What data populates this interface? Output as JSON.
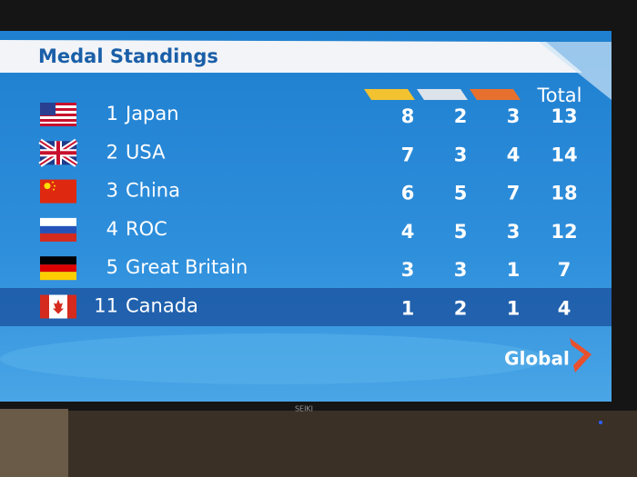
{
  "header": {
    "title": "Medal Standings"
  },
  "table": {
    "total_label": "Total",
    "rows": [
      {
        "rank": "1",
        "country": "Japan",
        "gold": "8",
        "silver": "2",
        "bronze": "3",
        "total": "13"
      },
      {
        "rank": "2",
        "country": "USA",
        "gold": "7",
        "silver": "3",
        "bronze": "4",
        "total": "14"
      },
      {
        "rank": "3",
        "country": "China",
        "gold": "6",
        "silver": "5",
        "bronze": "7",
        "total": "18"
      },
      {
        "rank": "4",
        "country": "ROC",
        "gold": "4",
        "silver": "5",
        "bronze": "3",
        "total": "12"
      },
      {
        "rank": "5",
        "country": "Great Britain",
        "gold": "3",
        "silver": "3",
        "bronze": "1",
        "total": "7"
      },
      {
        "rank": "11",
        "country": "Canada",
        "gold": "1",
        "silver": "2",
        "bronze": "1",
        "total": "4"
      }
    ]
  },
  "logo": "Global",
  "tv_brand": "SEIKI"
}
